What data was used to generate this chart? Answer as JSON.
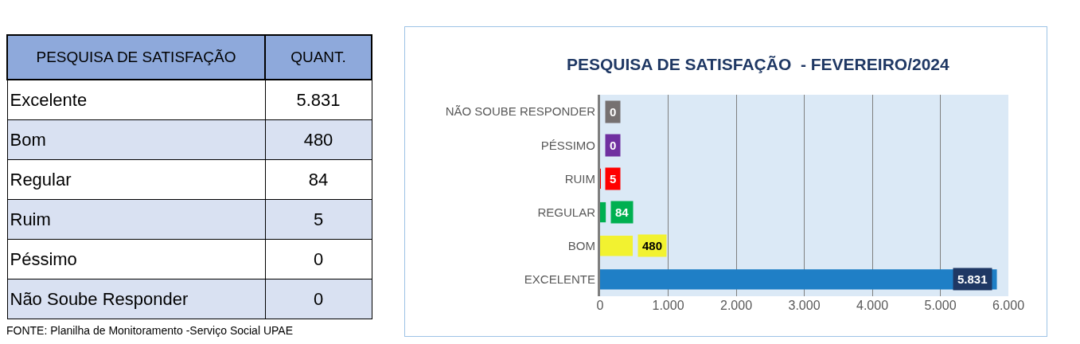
{
  "chart_data": [
    {
      "type": "other",
      "xlabel": "PESQUISA DE SATISFAÇÃO",
      "ylabel": "QUANT.",
      "categories": [
        "Excelente",
        "Bom",
        "Regular",
        "Ruim",
        "Péssimo",
        "Não Soube Responder"
      ],
      "value_labels": [
        "5.831",
        "480",
        "84",
        "5",
        "0",
        "0"
      ],
      "annotations": [
        "FONTE: Planilha de Monitoramento -Serviço Social UPAE"
      ]
    },
    {
      "type": "bar",
      "orientation": "horizontal",
      "title": "PESQUISA DE SATISFAÇÃO  - FEVEREIRO/2024",
      "categories": [
        "NÃO SOUBE RESPONDER",
        "PÉSSIMO",
        "RUIM",
        "REGULAR",
        "BOM",
        "EXCELENTE"
      ],
      "values": [
        0,
        0,
        5,
        84,
        480,
        5831
      ],
      "colors": [
        "#767171",
        "#7030a0",
        "#ff0000",
        "#00b050",
        "#f2f230",
        "#1f7fc6"
      ],
      "value_labels": [
        "0",
        "0",
        "5",
        "84",
        "480",
        "5.831"
      ],
      "xlim": [
        0,
        6000
      ],
      "xticks": [
        0,
        {
          "value": 1000,
          "label": "1.000"
        },
        {
          "value": 2000,
          "label": "2.000"
        },
        {
          "value": 3000,
          "label": "3.000"
        },
        {
          "value": 4000,
          "label": "4.000"
        },
        {
          "value": 5000,
          "label": "5.000"
        },
        {
          "value": 6000,
          "label": "6.000"
        }
      ],
      "grid": "x"
    }
  ]
}
